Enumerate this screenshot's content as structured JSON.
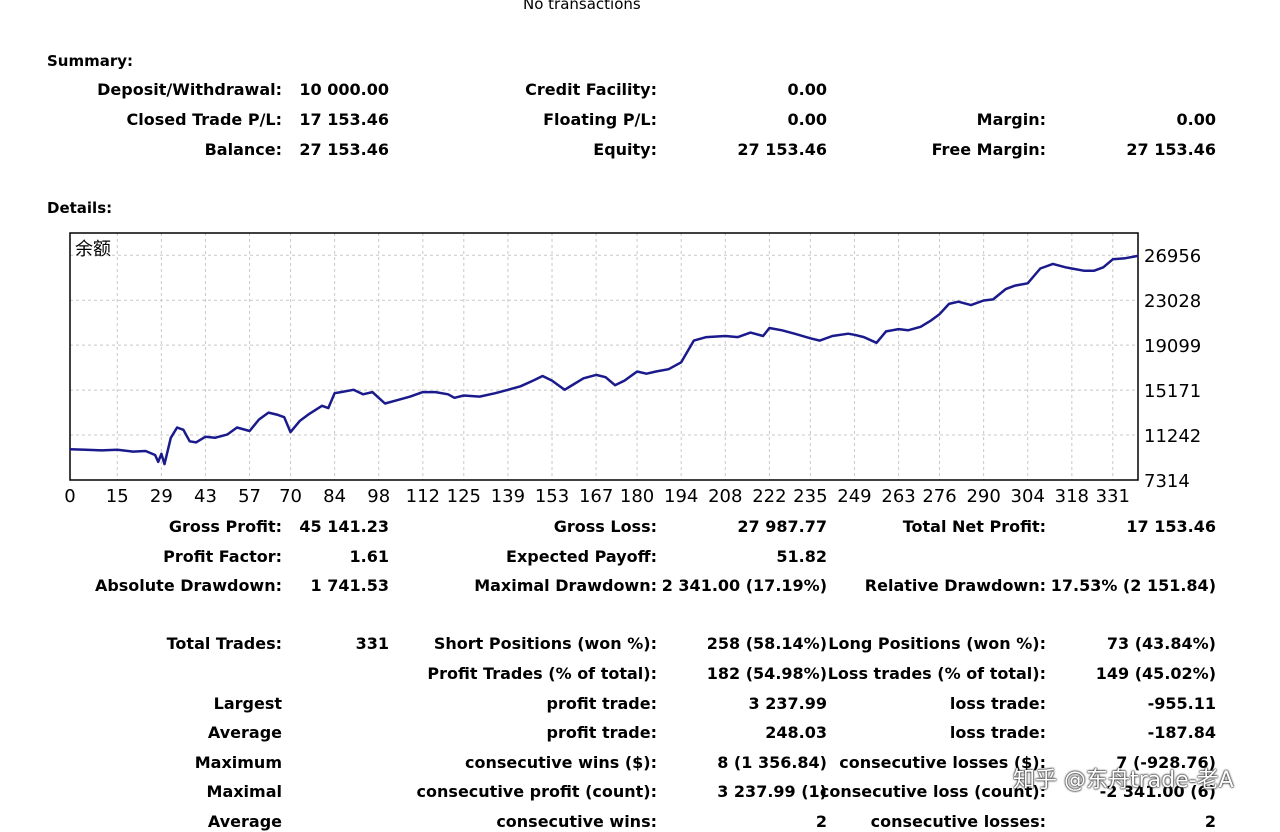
{
  "top_note": "No transactions",
  "summary": {
    "heading": "Summary:",
    "deposit_label": "Deposit/Withdrawal:",
    "deposit_value": "10 000.00",
    "credit_label": "Credit Facility:",
    "credit_value": "0.00",
    "closed_label": "Closed Trade P/L:",
    "closed_value": "17 153.46",
    "floating_label": "Floating P/L:",
    "floating_value": "0.00",
    "margin_label": "Margin:",
    "margin_value": "0.00",
    "balance_label": "Balance:",
    "balance_value": "27 153.46",
    "equity_label": "Equity:",
    "equity_value": "27 153.46",
    "free_margin_label": "Free Margin:",
    "free_margin_value": "27 153.46"
  },
  "details": {
    "heading": "Details:",
    "rows": [
      {
        "c1l": "Gross Profit:",
        "c1v": "45 141.23",
        "c2l": "Gross Loss:",
        "c2v": "27 987.77",
        "c3l": "Total Net Profit:",
        "c3v": "17 153.46"
      },
      {
        "c1l": "Profit Factor:",
        "c1v": "1.61",
        "c2l": "Expected Payoff:",
        "c2v": "51.82",
        "c3l": "",
        "c3v": ""
      },
      {
        "c1l": "Absolute Drawdown:",
        "c1v": "1 741.53",
        "c2l": "Maximal Drawdown:",
        "c2v": "2 341.00 (17.19%)",
        "c3l": "Relative Drawdown:",
        "c3v": "17.53% (2 151.84)"
      },
      {
        "c1l": "Total Trades:",
        "c1v": "331",
        "c2l": "Short Positions (won %):",
        "c2v": "258 (58.14%)",
        "c3l": "Long Positions (won %):",
        "c3v": "73 (43.84%)"
      },
      {
        "c1l": "",
        "c1v": "",
        "c2l": "Profit Trades (% of total):",
        "c2v": "182 (54.98%)",
        "c3l": "Loss trades (% of total):",
        "c3v": "149 (45.02%)"
      },
      {
        "c1l": "Largest",
        "c1v": "",
        "c2l": "profit trade:",
        "c2v": "3 237.99",
        "c3l": "loss trade:",
        "c3v": "-955.11"
      },
      {
        "c1l": "Average",
        "c1v": "",
        "c2l": "profit trade:",
        "c2v": "248.03",
        "c3l": "loss trade:",
        "c3v": "-187.84"
      },
      {
        "c1l": "Maximum",
        "c1v": "",
        "c2l": "consecutive wins ($):",
        "c2v": "8 (1 356.84)",
        "c3l": "consecutive losses ($):",
        "c3v": "7 (-928.76)"
      },
      {
        "c1l": "Maximal",
        "c1v": "",
        "c2l": "consecutive profit (count):",
        "c2v": "3 237.99 (1)",
        "c3l": "consecutive loss (count):",
        "c3v": "-2 341.00 (6)"
      },
      {
        "c1l": "Average",
        "c1v": "",
        "c2l": "consecutive wins:",
        "c2v": "2",
        "c3l": "consecutive losses:",
        "c3v": "2"
      }
    ]
  },
  "watermark": "知乎 @东舟trade-老A",
  "colors": {
    "line": "#1a1a8c",
    "grid": "#c8c8c8",
    "border": "#000000"
  },
  "chart_data": {
    "type": "line",
    "title": "余额",
    "xlabel": "",
    "ylabel": "",
    "x_ticks": [
      0,
      15,
      29,
      43,
      57,
      70,
      84,
      98,
      112,
      125,
      139,
      153,
      167,
      180,
      194,
      208,
      222,
      235,
      249,
      263,
      276,
      290,
      304,
      318,
      331
    ],
    "y_ticks": [
      7314,
      11242,
      15171,
      19099,
      23028,
      26956
    ],
    "xlim": [
      0,
      339
    ],
    "ylim": [
      7314,
      28900
    ],
    "grid": true,
    "series": [
      {
        "values": [
          [
            0,
            10000
          ],
          [
            5,
            9950
          ],
          [
            10,
            9900
          ],
          [
            15,
            9950
          ],
          [
            20,
            9800
          ],
          [
            24,
            9850
          ],
          [
            27,
            9500
          ],
          [
            28,
            8900
          ],
          [
            29,
            9600
          ],
          [
            30,
            8700
          ],
          [
            32,
            11000
          ],
          [
            34,
            11900
          ],
          [
            36,
            11700
          ],
          [
            38,
            10700
          ],
          [
            40,
            10600
          ],
          [
            43,
            11100
          ],
          [
            46,
            11000
          ],
          [
            50,
            11300
          ],
          [
            53,
            11900
          ],
          [
            57,
            11600
          ],
          [
            60,
            12600
          ],
          [
            63,
            13200
          ],
          [
            66,
            13000
          ],
          [
            68,
            12800
          ],
          [
            70,
            11500
          ],
          [
            73,
            12500
          ],
          [
            76,
            13100
          ],
          [
            80,
            13800
          ],
          [
            82,
            13600
          ],
          [
            84,
            14900
          ],
          [
            86,
            15000
          ],
          [
            90,
            15200
          ],
          [
            93,
            14800
          ],
          [
            96,
            15000
          ],
          [
            98,
            14500
          ],
          [
            100,
            14000
          ],
          [
            104,
            14300
          ],
          [
            108,
            14600
          ],
          [
            112,
            15000
          ],
          [
            116,
            15000
          ],
          [
            120,
            14800
          ],
          [
            122,
            14500
          ],
          [
            125,
            14700
          ],
          [
            130,
            14600
          ],
          [
            135,
            14900
          ],
          [
            139,
            15200
          ],
          [
            143,
            15500
          ],
          [
            147,
            16000
          ],
          [
            150,
            16400
          ],
          [
            153,
            16000
          ],
          [
            157,
            15200
          ],
          [
            160,
            15700
          ],
          [
            163,
            16200
          ],
          [
            167,
            16500
          ],
          [
            170,
            16300
          ],
          [
            173,
            15600
          ],
          [
            176,
            16000
          ],
          [
            180,
            16800
          ],
          [
            183,
            16600
          ],
          [
            186,
            16800
          ],
          [
            190,
            17000
          ],
          [
            194,
            17600
          ],
          [
            198,
            19500
          ],
          [
            202,
            19800
          ],
          [
            208,
            19900
          ],
          [
            212,
            19800
          ],
          [
            216,
            20200
          ],
          [
            220,
            19900
          ],
          [
            222,
            20600
          ],
          [
            226,
            20400
          ],
          [
            230,
            20100
          ],
          [
            235,
            19700
          ],
          [
            238,
            19500
          ],
          [
            242,
            19900
          ],
          [
            247,
            20100
          ],
          [
            249,
            20000
          ],
          [
            252,
            19800
          ],
          [
            256,
            19300
          ],
          [
            259,
            20300
          ],
          [
            263,
            20500
          ],
          [
            266,
            20400
          ],
          [
            270,
            20700
          ],
          [
            273,
            21200
          ],
          [
            276,
            21800
          ],
          [
            279,
            22700
          ],
          [
            282,
            22900
          ],
          [
            286,
            22600
          ],
          [
            290,
            23000
          ],
          [
            293,
            23100
          ],
          [
            297,
            24000
          ],
          [
            300,
            24300
          ],
          [
            304,
            24500
          ],
          [
            308,
            25800
          ],
          [
            312,
            26200
          ],
          [
            316,
            25900
          ],
          [
            318,
            25800
          ],
          [
            322,
            25600
          ],
          [
            325,
            25600
          ],
          [
            328,
            25900
          ],
          [
            331,
            26600
          ],
          [
            335,
            26700
          ],
          [
            339,
            26900
          ]
        ]
      }
    ]
  }
}
